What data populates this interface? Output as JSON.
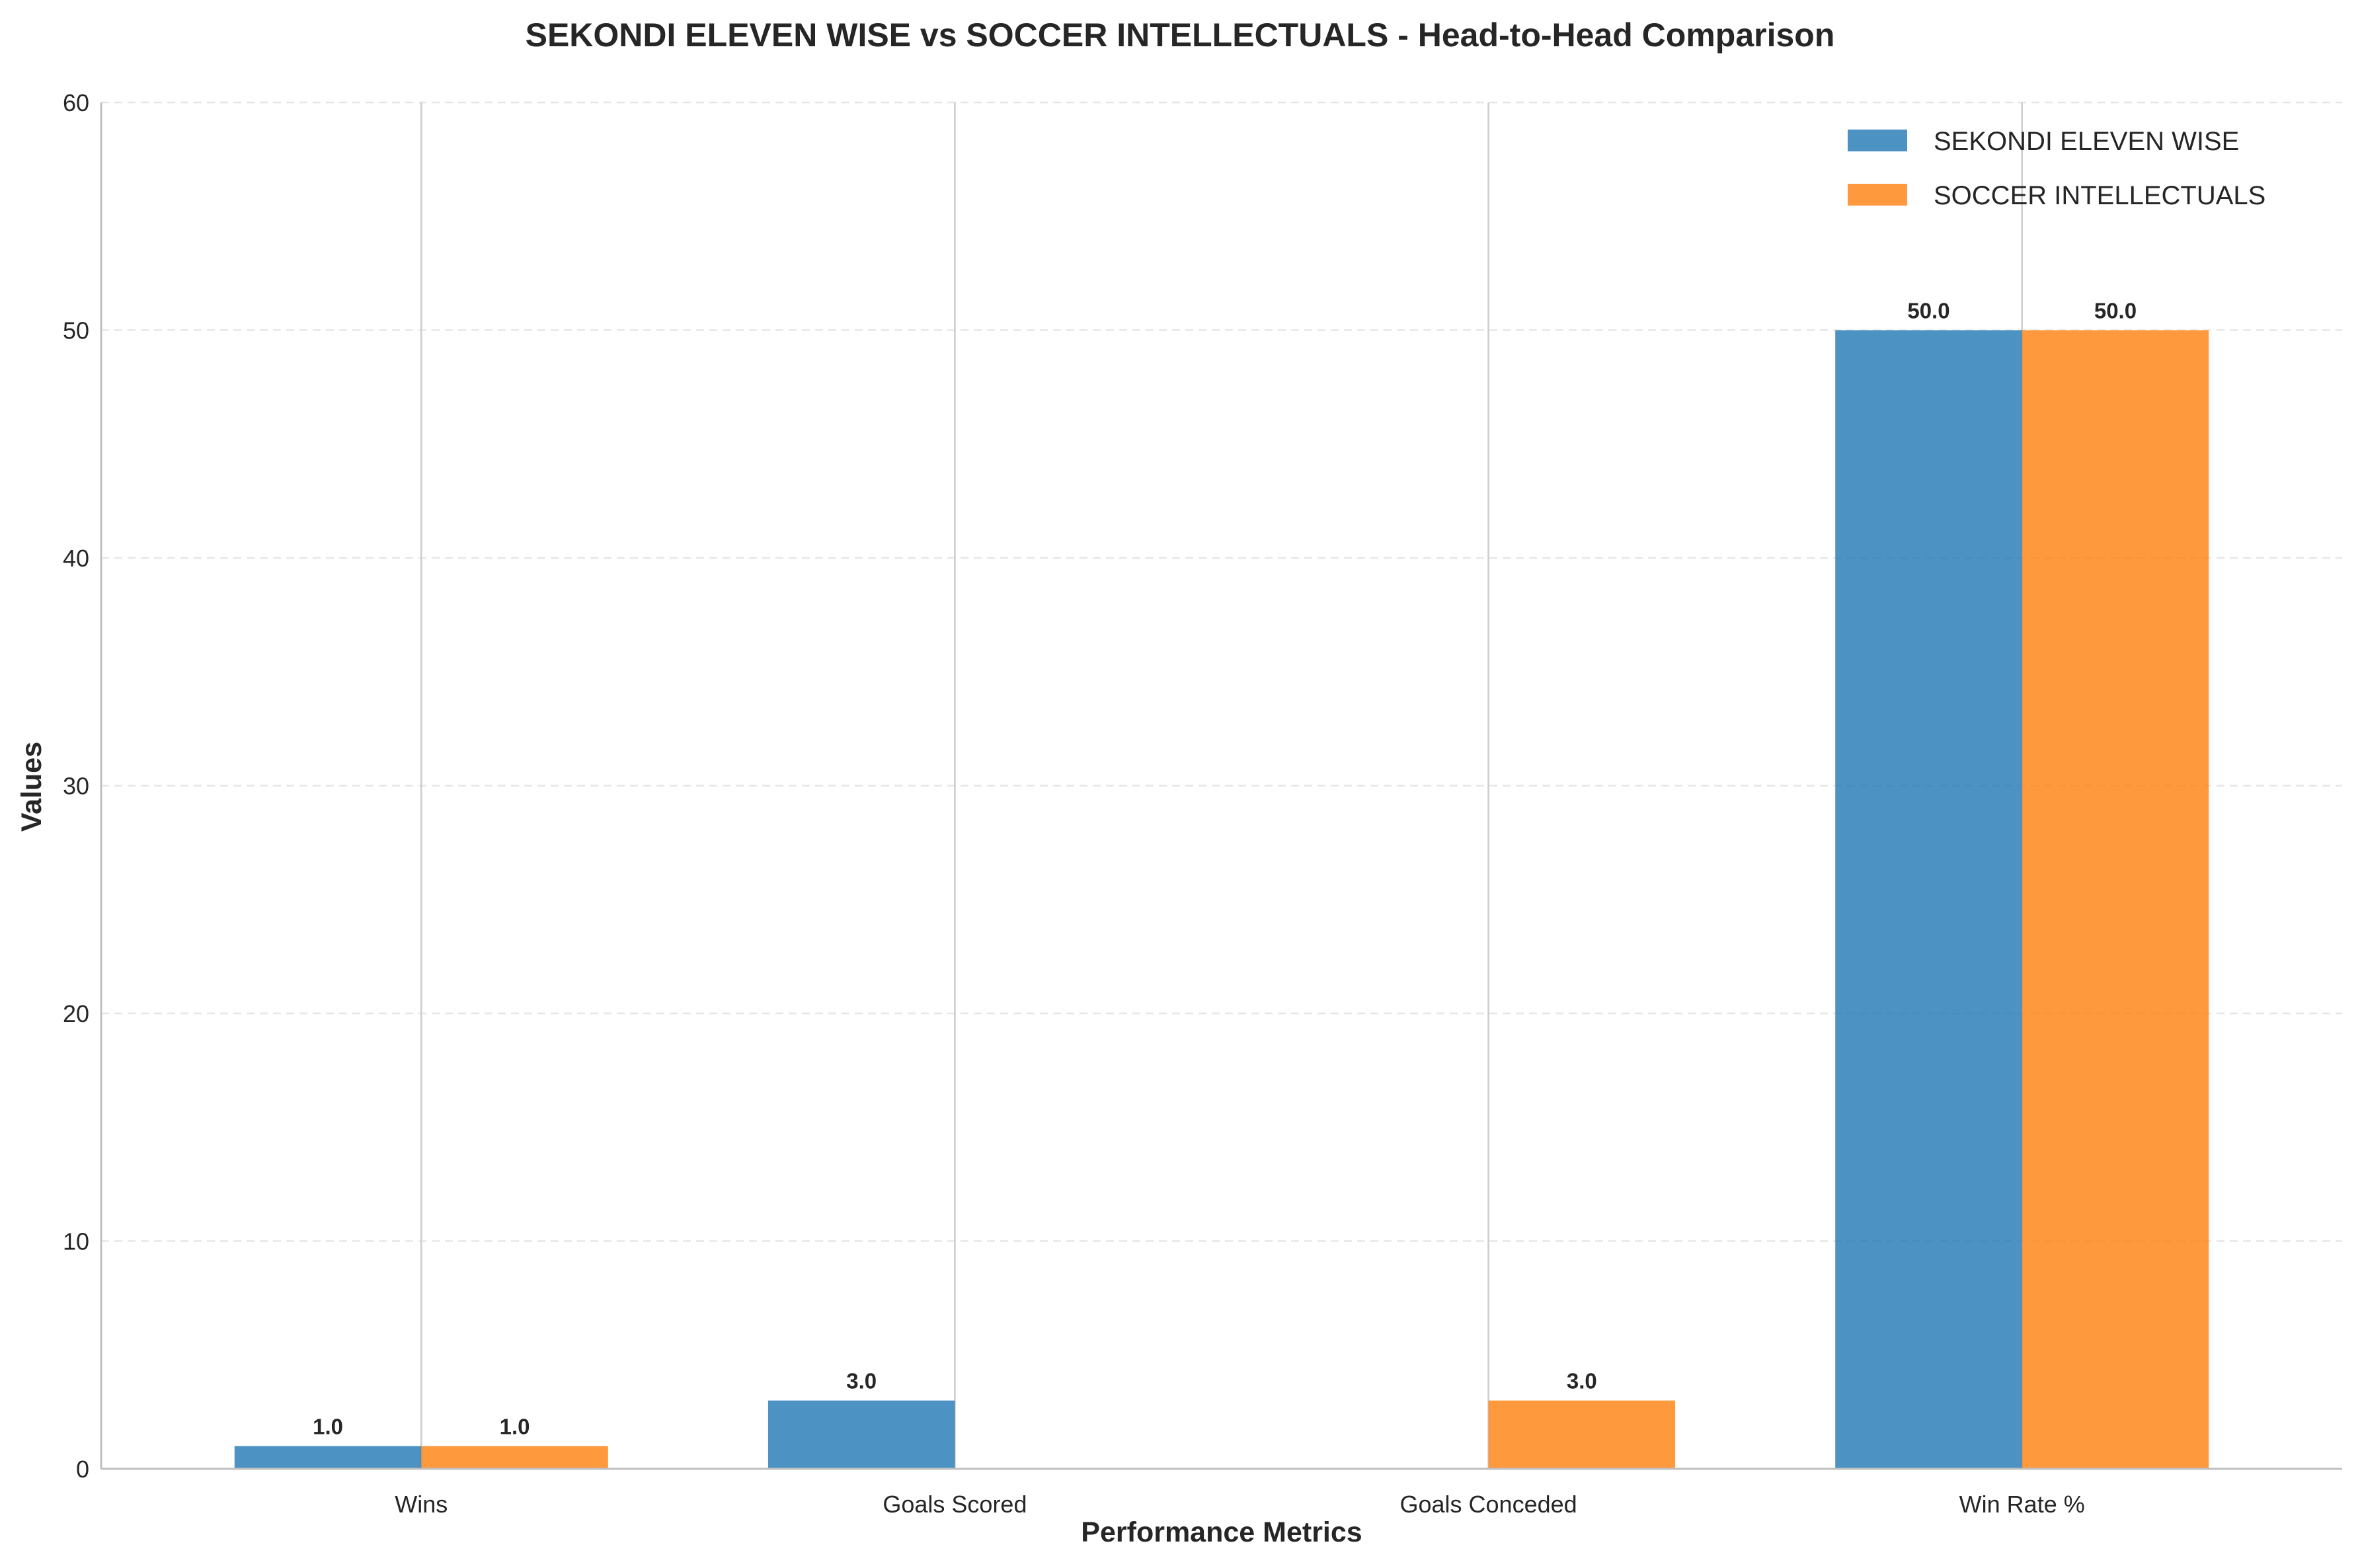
{
  "chart_data": {
    "type": "bar",
    "title": "SEKONDI ELEVEN WISE vs SOCCER INTELLECTUALS - Head-to-Head Comparison",
    "xlabel": "Performance Metrics",
    "ylabel": "Values",
    "categories": [
      "Wins",
      "Goals Scored",
      "Goals Conceded",
      "Win Rate %"
    ],
    "ylim": [
      0,
      60
    ],
    "yticks": [
      0,
      10,
      20,
      30,
      40,
      50,
      60
    ],
    "grid": "y-dashed",
    "legend_position": "top-right",
    "series": [
      {
        "name": "SEKONDI ELEVEN WISE",
        "color": "#1f77b4",
        "values": [
          1.0,
          3.0,
          0,
          50.0
        ],
        "labels": [
          "1.0",
          "3.0",
          "",
          "50.0"
        ]
      },
      {
        "name": "SOCCER INTELLECTUALS",
        "color": "#ff7f0e",
        "values": [
          1.0,
          0,
          3.0,
          50.0
        ],
        "labels": [
          "1.0",
          "",
          "3.0",
          "50.0"
        ]
      }
    ]
  }
}
